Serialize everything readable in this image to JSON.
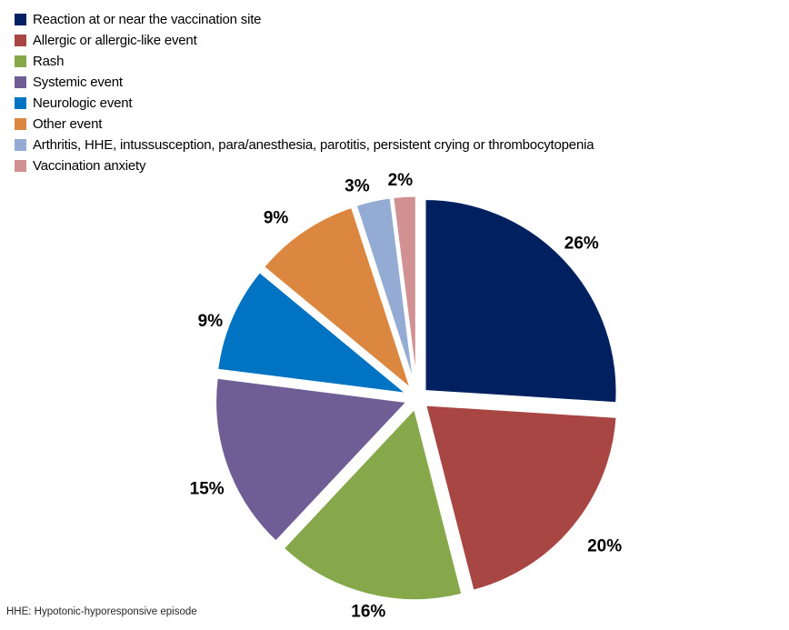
{
  "chart_data": {
    "type": "pie",
    "title": "",
    "categories": [
      "Reaction at or near the vaccination site",
      "Allergic or allergic-like event",
      "Rash",
      "Systemic event",
      "Neurologic event",
      "Other event",
      "Arthritis, HHE, intussusception, para/anesthesia, parotitis, persistent crying or thrombocytopenia",
      "Vaccination anxiety"
    ],
    "values": [
      26,
      20,
      16,
      15,
      9,
      9,
      3,
      2
    ],
    "value_labels": [
      "26%",
      "20%",
      "16%",
      "15%",
      "9%",
      "9%",
      "3%",
      "2%"
    ],
    "colors": [
      "#002060",
      "#A84644",
      "#86A84A",
      "#6F5D96",
      "#0073C2",
      "#DB8740",
      "#94ACD4",
      "#D19092"
    ],
    "start_angle_deg": 0,
    "direction": "clockwise",
    "exploded": true,
    "legend_position": "top-left",
    "slice_label_position": "outside-end"
  },
  "footnote": "HHE: Hypotonic-hyporesponsive episode"
}
